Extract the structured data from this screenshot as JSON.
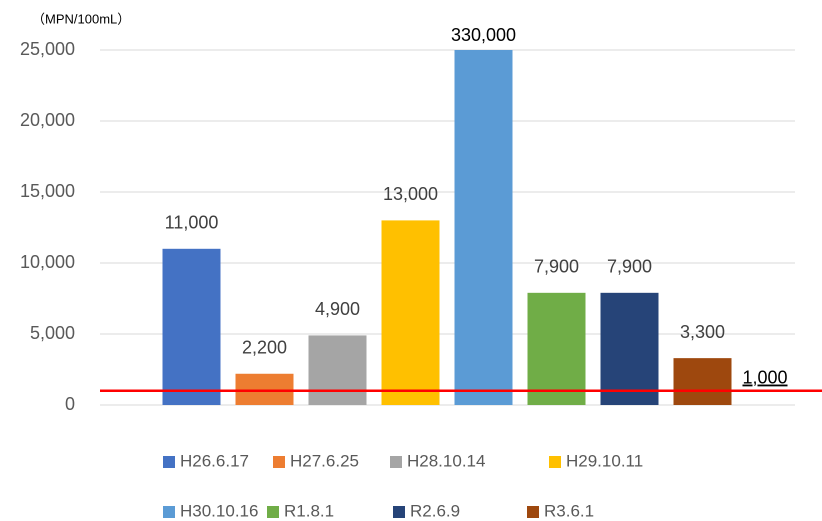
{
  "chart_data": {
    "type": "bar",
    "unit_label": "（MPN/100mL）",
    "categories": [
      "H26.6.17",
      "H27.6.25",
      "H28.10.14",
      "H29.10.11",
      "H30.10.16",
      "R1.8.1",
      "R2.6.9",
      "R3.6.1"
    ],
    "values": [
      11000,
      2200,
      4900,
      13000,
      330000,
      7900,
      7900,
      3300
    ],
    "value_labels": [
      "11,000",
      "2,200",
      "4,900",
      "13,000",
      "330,000",
      "7,900",
      "7,900",
      "3,300"
    ],
    "colors": [
      "#4472c4",
      "#ed7d31",
      "#a5a5a5",
      "#ffc000",
      "#5b9bd5",
      "#70ad47",
      "#264478",
      "#9e480e"
    ],
    "ylim": [
      0,
      25000
    ],
    "yticks": [
      0,
      {
        "value": 5000,
        "label": "5,000"
      },
      {
        "value": 10000,
        "label": "10,000"
      },
      {
        "value": 15000,
        "label": "15,000"
      },
      {
        "value": 20000,
        "label": "20,000"
      },
      {
        "value": 25000,
        "label": "25,000"
      }
    ],
    "grid": true,
    "reference_line": {
      "value": 1000,
      "label": "1,000",
      "color": "#ff0000"
    },
    "legend": "bottom"
  }
}
